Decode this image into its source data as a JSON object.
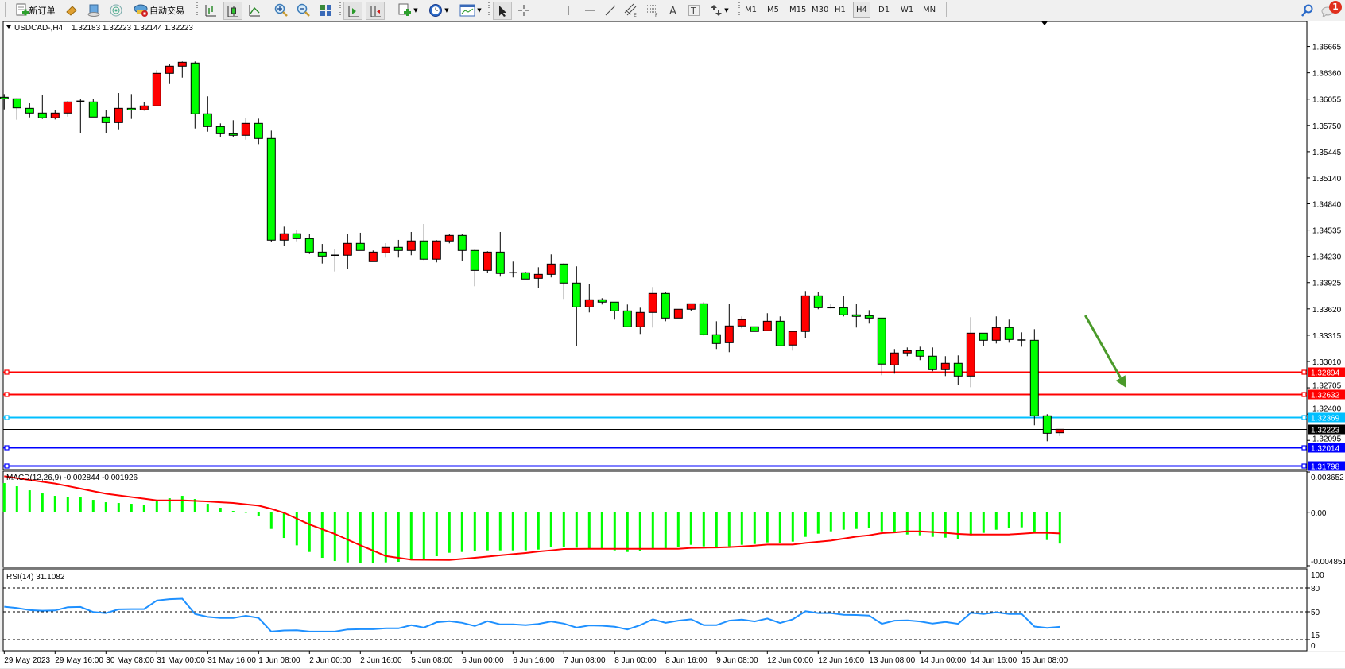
{
  "toolbar": {
    "new_order_label": "新订单",
    "auto_trading_label": "自动交易",
    "timeframes": [
      "M1",
      "M5",
      "M15",
      "M30",
      "H1",
      "H4",
      "D1",
      "W1",
      "MN"
    ],
    "active_timeframe": "H4",
    "notification_count": "1",
    "icons": [
      "new-order-icon",
      "market-watch-icon",
      "data-window-icon",
      "navigator-icon",
      "auto-trading-icon",
      "bar-chart-icon",
      "candlestick-icon",
      "line-chart-icon",
      "zoom-in-icon",
      "zoom-out-icon",
      "tile-windows-icon",
      "auto-scroll-icon",
      "chart-shift-icon",
      "new-chart-icon",
      "periods-icon",
      "templates-icon",
      "cursor-icon",
      "crosshair-icon",
      "vertical-line-icon",
      "horizontal-line-icon",
      "trendline-icon",
      "equidistant-channel-icon",
      "fibonacci-icon",
      "text-icon",
      "text-label-icon",
      "arrows-icon",
      "search-icon",
      "notification-icon"
    ]
  },
  "colors": {
    "bull_candle": "#ff0000",
    "bear_candle": "#00ff00",
    "macd_histogram": "#00ff00",
    "macd_signal": "#ff0000",
    "rsi_line": "#1e90ff",
    "annotation_arrow": "#4a9a2a"
  },
  "chart_data": {
    "type": "candlestick",
    "symbol_header": "USDCAD-,H4",
    "ohlc_header": "1.32183 1.32223 1.32144 1.32223",
    "price_ticks": [
      "1.36665",
      "1.36360",
      "1.36055",
      "1.35750",
      "1.35445",
      "1.35140",
      "1.34840",
      "1.34535",
      "1.34230",
      "1.33925",
      "1.33620",
      "1.33315",
      "1.33010",
      "1.32705",
      "1.32400",
      "1.32095"
    ],
    "time_ticks": [
      "29 May 2023",
      "29 May 16:00",
      "30 May 08:00",
      "31 May 00:00",
      "31 May 16:00",
      "1 Jun 08:00",
      "2 Jun 00:00",
      "2 Jun 16:00",
      "5 Jun 08:00",
      "6 Jun 00:00",
      "6 Jun 16:00",
      "7 Jun 08:00",
      "8 Jun 00:00",
      "8 Jun 16:00",
      "9 Jun 08:00",
      "12 Jun 00:00",
      "12 Jun 16:00",
      "13 Jun 08:00",
      "14 Jun 00:00",
      "14 Jun 16:00",
      "15 Jun 08:00"
    ],
    "ylim": [
      1.31756,
      1.36938
    ],
    "candles_ohlc": [
      [
        1.36077,
        1.36114,
        1.35935,
        1.36059
      ],
      [
        1.36059,
        1.36065,
        1.35816,
        1.35954
      ],
      [
        1.35948,
        1.36006,
        1.35843,
        1.35893
      ],
      [
        1.35893,
        1.36108,
        1.35825,
        1.35838
      ],
      [
        1.35838,
        1.3593,
        1.35819,
        1.35893
      ],
      [
        1.35893,
        1.36034,
        1.35852,
        1.36022
      ],
      [
        1.36031,
        1.36059,
        1.35659,
        1.3603
      ],
      [
        1.36022,
        1.36059,
        1.35847,
        1.35847
      ],
      [
        1.35847,
        1.3593,
        1.35659,
        1.35782
      ],
      [
        1.35782,
        1.36126,
        1.35705,
        1.35948
      ],
      [
        1.35948,
        1.36114,
        1.35825,
        1.3593
      ],
      [
        1.3593,
        1.36022,
        1.35921,
        1.35976
      ],
      [
        1.35976,
        1.36391,
        1.35976,
        1.36354
      ],
      [
        1.36354,
        1.36465,
        1.3623,
        1.36437
      ],
      [
        1.36437,
        1.36492,
        1.36304,
        1.36483
      ],
      [
        1.36474,
        1.36492,
        1.35714,
        1.35884
      ],
      [
        1.35884,
        1.36087,
        1.35677,
        1.35736
      ],
      [
        1.35736,
        1.35773,
        1.35616,
        1.35653
      ],
      [
        1.35653,
        1.3581,
        1.35616,
        1.35635
      ],
      [
        1.35635,
        1.35838,
        1.35585,
        1.35773
      ],
      [
        1.35773,
        1.35828,
        1.35533,
        1.35598
      ],
      [
        1.35598,
        1.3569,
        1.34399,
        1.34418
      ],
      [
        1.34418,
        1.34574,
        1.34353,
        1.34492
      ],
      [
        1.34492,
        1.3454,
        1.34405,
        1.34436
      ],
      [
        1.34436,
        1.34494,
        1.34257,
        1.34279
      ],
      [
        1.34279,
        1.34374,
        1.34147,
        1.34233
      ],
      [
        1.34243,
        1.3431,
        1.34055,
        1.34242
      ],
      [
        1.34243,
        1.34485,
        1.34082,
        1.34381
      ],
      [
        1.34381,
        1.34504,
        1.34298,
        1.34298
      ],
      [
        1.34169,
        1.34298,
        1.34169,
        1.34279
      ],
      [
        1.3427,
        1.34384,
        1.34215,
        1.34335
      ],
      [
        1.34335,
        1.34421,
        1.34215,
        1.34298
      ],
      [
        1.34298,
        1.34513,
        1.34243,
        1.34409
      ],
      [
        1.34409,
        1.34605,
        1.34187,
        1.34197
      ],
      [
        1.34197,
        1.34418,
        1.3416,
        1.34409
      ],
      [
        1.34409,
        1.34485,
        1.34381,
        1.34473
      ],
      [
        1.34473,
        1.34492,
        1.34178,
        1.34298
      ],
      [
        1.34298,
        1.34307,
        1.33883,
        1.34067
      ],
      [
        1.34067,
        1.34289,
        1.3404,
        1.34279
      ],
      [
        1.34279,
        1.34513,
        1.33994,
        1.34031
      ],
      [
        1.3404,
        1.34169,
        1.33985,
        1.34039
      ],
      [
        1.3404,
        1.34049,
        1.33966,
        1.33966
      ],
      [
        1.33975,
        1.34104,
        1.33865,
        1.34021
      ],
      [
        1.34021,
        1.34252,
        1.33985,
        1.34141
      ],
      [
        1.34141,
        1.3415,
        1.33736,
        1.3392
      ],
      [
        1.3392,
        1.34114,
        1.33192,
        1.33643
      ],
      [
        1.33643,
        1.33911,
        1.33579,
        1.33726
      ],
      [
        1.33726,
        1.33745,
        1.33671,
        1.33699
      ],
      [
        1.33699,
        1.33699,
        1.33496,
        1.33597
      ],
      [
        1.33597,
        1.33671,
        1.33413,
        1.33413
      ],
      [
        1.33413,
        1.33634,
        1.3333,
        1.33579
      ],
      [
        1.33579,
        1.33874,
        1.33404,
        1.338
      ],
      [
        1.338,
        1.33819,
        1.33477,
        1.33514
      ],
      [
        1.33514,
        1.33616,
        1.33514,
        1.33616
      ],
      [
        1.33616,
        1.3368,
        1.33597,
        1.3368
      ],
      [
        1.3368,
        1.33699,
        1.33311,
        1.33321
      ],
      [
        1.33321,
        1.33477,
        1.33155,
        1.33219
      ],
      [
        1.33228,
        1.3368,
        1.33118,
        1.33422
      ],
      [
        1.33422,
        1.33533,
        1.33394,
        1.33496
      ],
      [
        1.33413,
        1.33413,
        1.33358,
        1.33358
      ],
      [
        1.33367,
        1.3357,
        1.33367,
        1.33477
      ],
      [
        1.33477,
        1.33533,
        1.33192,
        1.33192
      ],
      [
        1.33201,
        1.33367,
        1.33136,
        1.33358
      ],
      [
        1.33358,
        1.33828,
        1.33284,
        1.33772
      ],
      [
        1.33772,
        1.33819,
        1.33616,
        1.33634
      ],
      [
        1.33634,
        1.3368,
        1.33625,
        1.33633
      ],
      [
        1.33634,
        1.33772,
        1.33533,
        1.33551
      ],
      [
        1.33551,
        1.3368,
        1.33404,
        1.33533
      ],
      [
        1.33542,
        1.33606,
        1.3345,
        1.33514
      ],
      [
        1.33514,
        1.33514,
        1.3285,
        1.3298
      ],
      [
        1.3297,
        1.33155,
        1.32869,
        1.33109
      ],
      [
        1.33109,
        1.33173,
        1.33072,
        1.33136
      ],
      [
        1.33136,
        1.33182,
        1.33026,
        1.33072
      ],
      [
        1.33072,
        1.33173,
        1.32897,
        1.32915
      ],
      [
        1.32915,
        1.33072,
        1.32841,
        1.32989
      ],
      [
        1.32989,
        1.33081,
        1.3274,
        1.32841
      ],
      [
        1.32841,
        1.33524,
        1.32712,
        1.33339
      ],
      [
        1.33339,
        1.33339,
        1.33192,
        1.33256
      ],
      [
        1.33256,
        1.33533,
        1.33219,
        1.33404
      ],
      [
        1.33404,
        1.33496,
        1.33228,
        1.33265
      ],
      [
        1.33259,
        1.33348,
        1.33182,
        1.33258
      ],
      [
        1.33256,
        1.33385,
        1.3227,
        1.3238
      ],
      [
        1.3238,
        1.32399,
        1.32085,
        1.32177
      ],
      [
        1.32183,
        1.32223,
        1.32144,
        1.32223
      ]
    ],
    "horizontal_lines": [
      {
        "price": "1.32894",
        "color": "#ff0000"
      },
      {
        "price": "1.32632",
        "color": "#ff0000"
      },
      {
        "price": "1.32369",
        "color": "#00bfff"
      },
      {
        "price": "1.32014",
        "color": "#0000ff"
      },
      {
        "price": "1.31798",
        "color": "#0000ff"
      }
    ],
    "bid_line": {
      "price": "1.32223",
      "color": "#000000"
    },
    "annotation_arrow": {
      "from": {
        "candle": 85,
        "price": 1.33545
      },
      "to": {
        "candle": 88.2,
        "price": 1.32707
      },
      "direction": "down"
    },
    "macd": {
      "label": "MACD(12,26,9) -0.002844 -0.001926",
      "axis_ticks": [
        "0.003652",
        "0.00",
        "-0.004851"
      ],
      "ylim": [
        -0.004851,
        0.003652
      ],
      "histogram": [
        0.002643,
        0.002355,
        0.001994,
        0.001706,
        0.00149,
        0.001418,
        0.001346,
        0.001129,
        0.000913,
        0.000841,
        0.000769,
        0.000697,
        0.000985,
        0.001274,
        0.00149,
        0.001202,
        0.000769,
        0.000409,
        0.00012,
        2e-05,
        -0.00036,
        -0.001514,
        -0.002331,
        -0.003004,
        -0.003605,
        -0.004133,
        -0.004422,
        -0.004542,
        -0.004638,
        -0.004638,
        -0.004542,
        -0.004494,
        -0.004277,
        -0.004325,
        -0.003989,
        -0.003677,
        -0.003605,
        -0.003556,
        -0.00346,
        -0.00346,
        -0.00346,
        -0.00346,
        -0.003388,
        -0.003172,
        -0.003172,
        -0.00322,
        -0.003268,
        -0.003268,
        -0.00346,
        -0.003605,
        -0.003532,
        -0.003268,
        -0.003268,
        -0.003172,
        -0.002956,
        -0.0031,
        -0.00322,
        -0.0031,
        -0.002956,
        -0.002884,
        -0.002739,
        -0.002812,
        -0.002667,
        -0.002235,
        -0.001946,
        -0.00173,
        -0.001586,
        -0.001514,
        -0.001442,
        -0.00173,
        -0.001874,
        -0.002019,
        -0.002091,
        -0.002235,
        -0.002307,
        -0.002451,
        -0.002091,
        -0.001874,
        -0.001586,
        -0.001442,
        -0.00137,
        -0.001802,
        -0.002523,
        -0.002844
      ],
      "signal": [
        0.00327,
        0.0031,
        0.00293,
        0.00276,
        0.0026,
        0.00237,
        0.00214,
        0.00191,
        0.00168,
        0.00153,
        0.00138,
        0.00123,
        0.00108,
        0.00108,
        0.00108,
        0.00103,
        0.00098,
        0.00091,
        0.00084,
        0.00072,
        0.0006,
        0.00031,
        -5e-05,
        -0.00058,
        -0.00111,
        -0.00154,
        -0.00197,
        -0.00249,
        -0.003,
        -0.00348,
        -0.00397,
        -0.00414,
        -0.0043,
        -0.00431,
        -0.00432,
        -0.00433,
        -0.00423,
        -0.00413,
        -0.00402,
        -0.00391,
        -0.0038,
        -0.0037,
        -0.00356,
        -0.00346,
        -0.00334,
        -0.00333,
        -0.00332,
        -0.00332,
        -0.00332,
        -0.00332,
        -0.00332,
        -0.00332,
        -0.00332,
        -0.00332,
        -0.00324,
        -0.00322,
        -0.0032,
        -0.00317,
        -0.0031,
        -0.00303,
        -0.00293,
        -0.00293,
        -0.00293,
        -0.00279,
        -0.00268,
        -0.00257,
        -0.00239,
        -0.00221,
        -0.00209,
        -0.0019,
        -0.00183,
        -0.00173,
        -0.00173,
        -0.0018,
        -0.00187,
        -0.00197,
        -0.00202,
        -0.00202,
        -0.00202,
        -0.00202,
        -0.00195,
        -0.00187,
        -0.00187,
        -0.001926
      ]
    },
    "rsi": {
      "label": "RSI(14) 31.1082",
      "axis_ticks": [
        "100",
        "80",
        "50",
        "15",
        "0"
      ],
      "levels": [
        80,
        50,
        15
      ],
      "ylim": [
        0,
        100
      ],
      "values": [
        56.4,
        54.8,
        52.1,
        51.4,
        51.7,
        55.8,
        56.1,
        49.7,
        48.4,
        53.1,
        53.4,
        53.4,
        64.2,
        65.9,
        66.5,
        47.3,
        43.6,
        42.3,
        42.3,
        45.0,
        42.3,
        25.1,
        26.5,
        26.8,
        25.1,
        25.1,
        25.1,
        27.8,
        28.1,
        28.1,
        29.2,
        29.2,
        33.2,
        30.2,
        36.9,
        38.2,
        36.2,
        32.2,
        38.2,
        34.2,
        34.2,
        33.2,
        34.8,
        37.9,
        35.2,
        30.2,
        32.9,
        32.5,
        31.2,
        27.8,
        33.2,
        40.6,
        36.2,
        38.9,
        40.6,
        33.2,
        33.2,
        38.9,
        40.3,
        37.9,
        41.6,
        35.9,
        40.6,
        50.7,
        48.4,
        48.4,
        46.3,
        46.0,
        45.3,
        34.9,
        38.9,
        39.3,
        37.9,
        35.2,
        37.2,
        34.9,
        48.7,
        47.3,
        49.4,
        47.3,
        47.3,
        31.5,
        29.8,
        31.1082
      ]
    }
  }
}
